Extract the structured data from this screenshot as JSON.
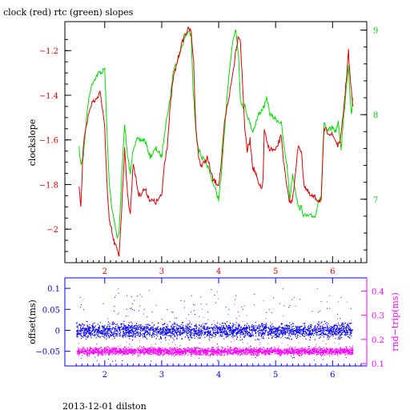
{
  "title": "clock (red) rtc (green) slopes",
  "footer": "2013-12-01 dilston",
  "colors": {
    "red": "#e00000",
    "green": "#00e000",
    "blue": "#0000ff",
    "magenta": "#ff00ff",
    "axis": "#000000"
  },
  "chart_data": [
    {
      "type": "line",
      "title": "clock (red) rtc (green) slopes",
      "ylabel": "clockslope",
      "y2label": "",
      "xlim": [
        1.3,
        6.6
      ],
      "ylim": [
        -2.15,
        -1.07
      ],
      "y2lim": [
        6.25,
        9.1
      ],
      "x_ticks": [
        2,
        3,
        4,
        5,
        6
      ],
      "y_ticks": [
        -2,
        -1.8,
        -1.6,
        -1.4,
        -1.2
      ],
      "y_tick_labels": [
        "−2",
        "−1.8",
        "−1.6",
        "−1.4",
        "−1.2"
      ],
      "y2_ticks": [
        7,
        8,
        9
      ],
      "grid": false,
      "series": [
        {
          "name": "clock",
          "color": "#e00000",
          "axis": "left",
          "x": [
            1.55,
            1.58,
            1.62,
            1.66,
            1.72,
            1.78,
            1.85,
            1.92,
            2.0,
            2.05,
            2.08,
            2.12,
            2.15,
            2.2,
            2.25,
            2.3,
            2.35,
            2.4,
            2.45,
            2.5,
            2.55,
            2.6,
            2.7,
            2.8,
            2.9,
            3.0,
            3.05,
            3.1,
            3.15,
            3.2,
            3.3,
            3.4,
            3.48,
            3.52,
            3.56,
            3.6,
            3.65,
            3.7,
            3.8,
            3.9,
            4.0,
            4.05,
            4.1,
            4.15,
            4.2,
            4.25,
            4.3,
            4.35,
            4.38,
            4.42,
            4.46,
            4.5,
            4.55,
            4.6,
            4.65,
            4.7,
            4.75,
            4.78,
            4.8,
            4.85,
            4.9,
            5.0,
            5.1,
            5.15,
            5.2,
            5.25,
            5.28,
            5.3,
            5.35,
            5.4,
            5.45,
            5.5,
            5.6,
            5.7,
            5.75,
            5.8,
            5.85,
            5.9,
            6.0,
            6.05,
            6.1,
            6.15,
            6.2,
            6.25,
            6.28,
            6.3,
            6.33,
            6.36
          ],
          "values": [
            -1.8,
            -1.9,
            -1.65,
            -1.55,
            -1.48,
            -1.43,
            -1.42,
            -1.38,
            -1.55,
            -1.85,
            -1.97,
            -2.0,
            -2.05,
            -2.08,
            -2.12,
            -1.9,
            -1.63,
            -1.85,
            -1.93,
            -1.7,
            -1.78,
            -1.85,
            -1.82,
            -1.87,
            -1.88,
            -1.85,
            -1.7,
            -1.62,
            -1.45,
            -1.33,
            -1.22,
            -1.13,
            -1.1,
            -1.12,
            -1.25,
            -1.55,
            -1.68,
            -1.72,
            -1.68,
            -1.78,
            -1.8,
            -1.7,
            -1.53,
            -1.45,
            -1.38,
            -1.3,
            -1.2,
            -1.13,
            -1.15,
            -1.35,
            -1.55,
            -1.65,
            -1.6,
            -1.72,
            -1.75,
            -1.8,
            -1.82,
            -1.78,
            -1.55,
            -1.62,
            -1.64,
            -1.65,
            -1.58,
            -1.72,
            -1.82,
            -1.88,
            -1.88,
            -1.85,
            -1.75,
            -1.62,
            -1.65,
            -1.8,
            -1.85,
            -1.86,
            -1.87,
            -1.87,
            -1.55,
            -1.56,
            -1.58,
            -1.6,
            -1.63,
            -1.58,
            -1.45,
            -1.3,
            -1.2,
            -1.3,
            -1.38,
            -1.45
          ]
        },
        {
          "name": "rtc",
          "color": "#00e000",
          "axis": "right",
          "x": [
            1.55,
            1.58,
            1.62,
            1.66,
            1.7,
            1.75,
            1.8,
            1.85,
            1.9,
            1.95,
            2.0,
            2.05,
            2.08,
            2.12,
            2.18,
            2.22,
            2.25,
            2.3,
            2.35,
            2.4,
            2.45,
            2.5,
            2.55,
            2.6,
            2.7,
            2.8,
            2.9,
            3.0,
            3.05,
            3.1,
            3.15,
            3.2,
            3.3,
            3.4,
            3.48,
            3.52,
            3.55,
            3.6,
            3.65,
            3.7,
            3.8,
            3.9,
            4.0,
            4.05,
            4.1,
            4.15,
            4.2,
            4.25,
            4.3,
            4.35,
            4.38,
            4.42,
            4.46,
            4.5,
            4.55,
            4.6,
            4.65,
            4.7,
            4.75,
            4.8,
            4.85,
            4.9,
            5.0,
            5.1,
            5.15,
            5.2,
            5.25,
            5.3,
            5.35,
            5.4,
            5.45,
            5.5,
            5.6,
            5.7,
            5.75,
            5.8,
            5.85,
            5.9,
            6.0,
            6.05,
            6.1,
            6.15,
            6.2,
            6.25,
            6.28,
            6.3,
            6.33,
            6.36
          ],
          "values": [
            7.6,
            7.4,
            7.5,
            7.8,
            8.1,
            8.3,
            8.4,
            8.45,
            8.5,
            8.5,
            8.55,
            7.6,
            7.2,
            6.9,
            6.7,
            6.55,
            6.6,
            7.3,
            7.9,
            7.5,
            7.3,
            7.6,
            7.7,
            7.7,
            7.7,
            7.5,
            7.6,
            7.5,
            7.8,
            8.0,
            8.2,
            8.5,
            8.7,
            8.9,
            9.0,
            8.9,
            8.3,
            7.8,
            7.6,
            7.5,
            7.4,
            7.2,
            7.0,
            7.3,
            7.8,
            8.2,
            8.6,
            8.9,
            9.0,
            8.7,
            8.2,
            8.1,
            8.1,
            8.0,
            7.9,
            7.8,
            7.9,
            8.0,
            8.05,
            8.1,
            8.2,
            8.0,
            7.95,
            7.9,
            7.6,
            7.4,
            7.0,
            7.3,
            7.1,
            6.9,
            6.9,
            6.8,
            6.8,
            6.8,
            7.0,
            7.0,
            7.9,
            7.8,
            7.85,
            7.8,
            7.9,
            7.6,
            8.0,
            8.4,
            8.6,
            8.3,
            8.0,
            8.2
          ]
        }
      ]
    },
    {
      "type": "scatter",
      "ylabel": "offset(ms)",
      "y2label": "rnd−trip(ms)",
      "xlim": [
        1.3,
        6.6
      ],
      "ylim": [
        -0.085,
        0.125
      ],
      "y2lim": [
        0.09,
        0.455
      ],
      "x_ticks": [
        2,
        3,
        4,
        5,
        6
      ],
      "y_ticks": [
        -0.05,
        0,
        0.05,
        0.1
      ],
      "y_tick_labels": [
        "−0.05",
        "0",
        "0.05",
        "0.1"
      ],
      "y2_ticks": [
        0.1,
        0.2,
        0.3,
        0.4
      ],
      "grid": false,
      "series": [
        {
          "name": "offset",
          "color": "#0000ff",
          "axis": "left",
          "x_range": [
            1.5,
            6.35
          ],
          "y_band": [
            -0.025,
            0.025
          ],
          "y_core": 0,
          "outliers": [
            0.06,
            0.08,
            0.1,
            -0.07
          ]
        },
        {
          "name": "rnd-trip",
          "color": "#ff00ff",
          "axis": "right",
          "x_range": [
            1.5,
            6.35
          ],
          "y_band": [
            0.13,
            0.175
          ],
          "y_core": 0.15,
          "outliers": [
            0.2,
            0.25,
            0.3,
            0.4
          ]
        }
      ]
    }
  ]
}
